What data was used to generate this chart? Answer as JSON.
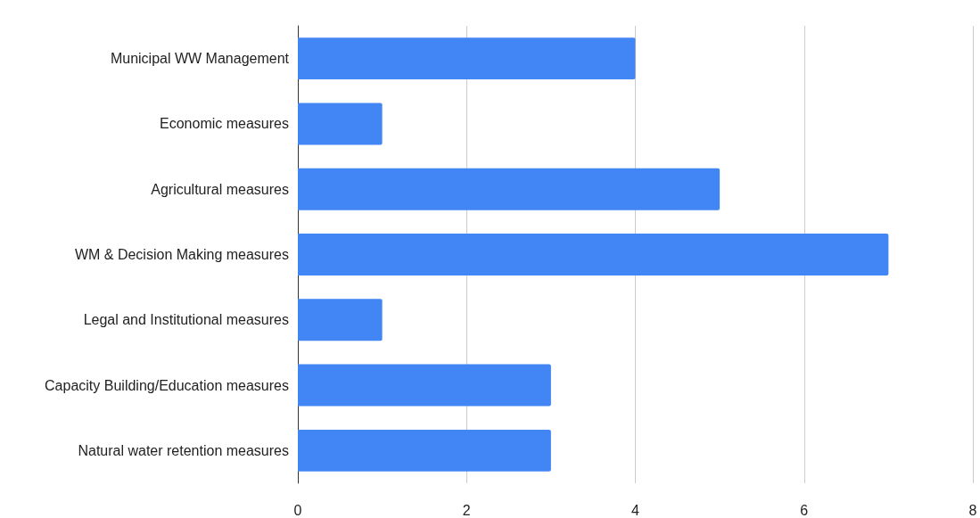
{
  "chart_data": {
    "type": "bar",
    "orientation": "horizontal",
    "categories": [
      "Municipal WW Management",
      "Economic measures",
      "Agricultural measures",
      "WM & Decision Making measures",
      "Legal and Institutional measures",
      "Capacity Building/Education measures",
      "Natural water retention measures"
    ],
    "values": [
      4,
      1,
      5,
      7,
      1,
      3,
      3
    ],
    "color": "#4285f4",
    "xlim": [
      0,
      8
    ],
    "xticks": [
      0,
      2,
      4,
      6,
      8
    ],
    "grid": "x"
  }
}
